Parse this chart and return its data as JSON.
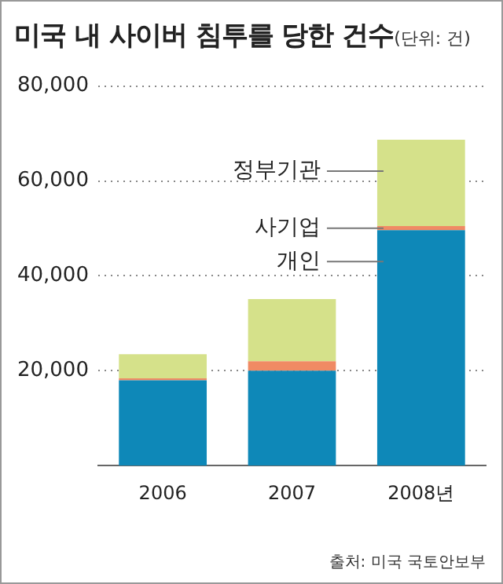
{
  "chart_data": {
    "type": "bar",
    "title": "미국 내 사이버 침투를 당한 건수",
    "subtitle": "(단위: 건)",
    "stacked": true,
    "categories": [
      "2006",
      "2007",
      "2008년"
    ],
    "series": [
      {
        "name": "개인",
        "color": "#0e88b8",
        "values": [
          18000,
          20000,
          49600
        ]
      },
      {
        "name": "사기업",
        "color": "#f08a64",
        "values": [
          400,
          2000,
          900
        ]
      },
      {
        "name": "정부기관",
        "color": "#d5e18a",
        "values": [
          5100,
          13100,
          18200
        ]
      }
    ],
    "ylim": [
      0,
      80000
    ],
    "yticks": [
      {
        "value": 20000,
        "label": "20,000"
      },
      {
        "value": 40000,
        "label": "40,000"
      },
      {
        "value": 60000,
        "label": "60,000"
      },
      {
        "value": 80000,
        "label": "80,000"
      }
    ],
    "grid": "y",
    "legend": false,
    "annotations": [
      "출처: 미국 국토안보부"
    ]
  }
}
